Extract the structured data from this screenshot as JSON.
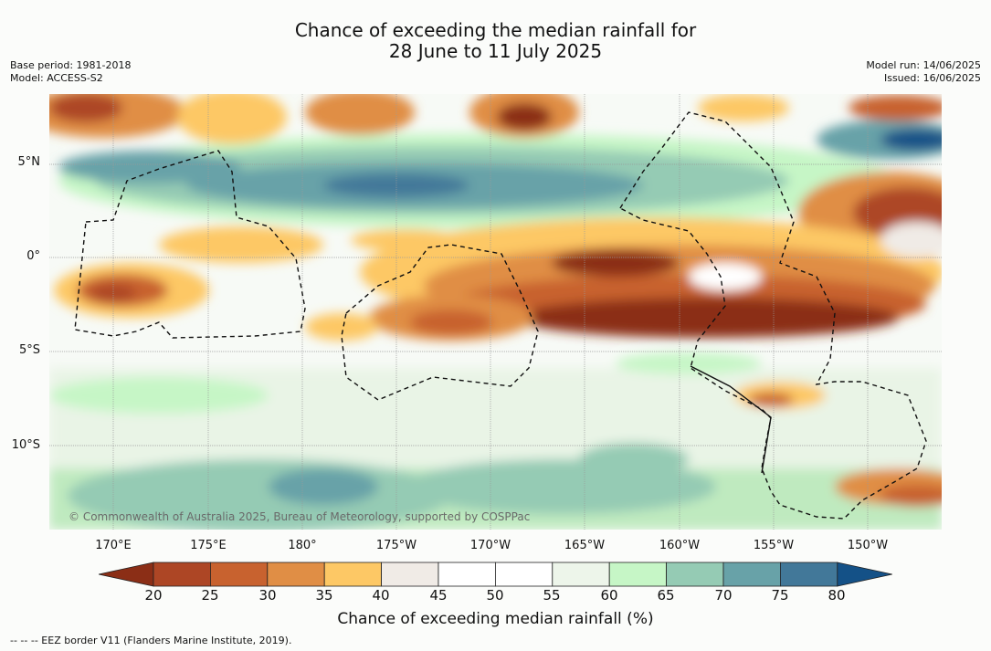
{
  "header": {
    "title_line1": "Chance of exceeding the median rainfall for",
    "title_line2": "28 June to 11 July 2025",
    "base_period": "Base period: 1981-2018",
    "model": "Model: ACCESS-S2",
    "model_run": "Model run: 14/06/2025",
    "issued": "Issued: 16/06/2025"
  },
  "map": {
    "lat_labels": [
      "5°N",
      "0°",
      "5°S",
      "10°S"
    ],
    "lon_labels": [
      "170°E",
      "175°E",
      "180°",
      "175°W",
      "170°W",
      "165°W",
      "160°W",
      "155°W",
      "150°W"
    ],
    "copyright": "© Commonwealth of Australia 2025, Bureau of Meteorology, supported by COSPPac",
    "gridlines": true
  },
  "legend": {
    "ticks": [
      "20",
      "25",
      "30",
      "35",
      "40",
      "45",
      "50",
      "55",
      "60",
      "65",
      "70",
      "75",
      "80"
    ],
    "colors": [
      "#8b2e16",
      "#ad4625",
      "#c8622f",
      "#e08e45",
      "#fdc865",
      "#f0ebe6",
      "#ffffff",
      "#ffffff",
      "#edf5ea",
      "#c6f6c6",
      "#95cbb4",
      "#68a2a8",
      "#427899",
      "#145187"
    ],
    "title": "Chance of exceeding median rainfall (%)"
  },
  "footer": {
    "eez_note": "--  --  -- EEZ border V11 (Flanders Marine Institute, 2019)."
  }
}
